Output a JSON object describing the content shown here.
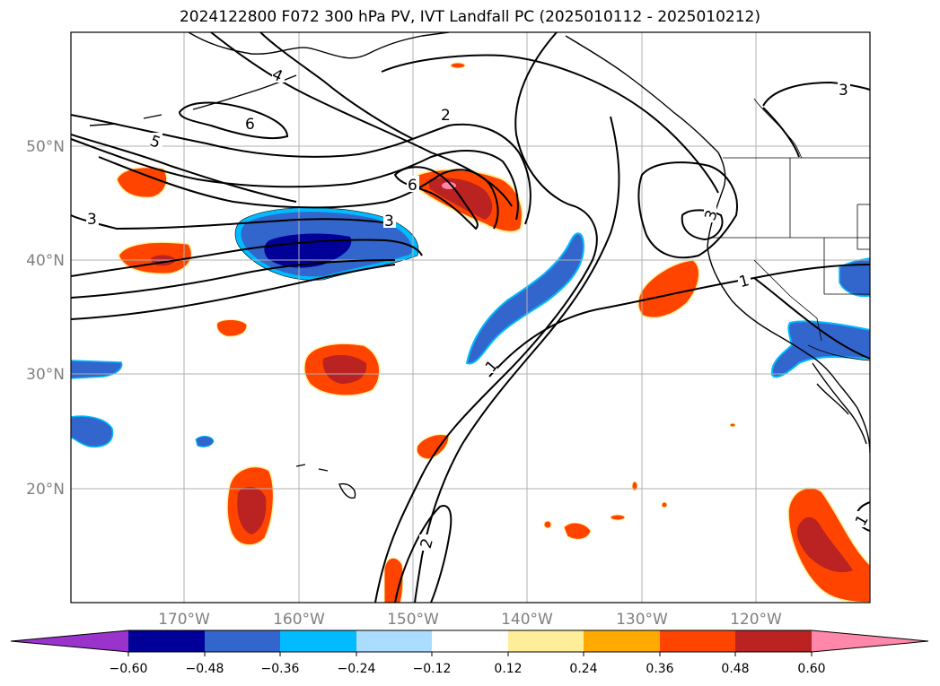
{
  "title": "2024122800 F072 300 hPa PV, IVT Landfall PC (2025010112 - 2025010212)",
  "map": {
    "lat_labels": [
      "50°N",
      "40°N",
      "30°N",
      "20°N"
    ],
    "lon_labels": [
      "170°W",
      "160°W",
      "150°W",
      "140°W",
      "130°W",
      "120°W"
    ],
    "contour_labels": [
      {
        "text": "4",
        "name": "contour-label-4"
      },
      {
        "text": "6",
        "name": "contour-label-6-north"
      },
      {
        "text": "5",
        "name": "contour-label-5"
      },
      {
        "text": "2",
        "name": "contour-label-2-north"
      },
      {
        "text": "6",
        "name": "contour-label-6-center"
      },
      {
        "text": "3",
        "name": "contour-label-3-center"
      },
      {
        "text": "3",
        "name": "contour-label-3-west"
      },
      {
        "text": "3",
        "name": "contour-label-3-northeast"
      },
      {
        "text": "3",
        "name": "contour-label-3-coast"
      },
      {
        "text": "1",
        "name": "contour-label-1-east"
      },
      {
        "text": "1",
        "name": "contour-label-1-center"
      },
      {
        "text": "2",
        "name": "contour-label-2-south"
      },
      {
        "text": "1",
        "name": "contour-label-1-southeast"
      }
    ]
  },
  "colorbar": {
    "ticks": [
      "−0.60",
      "−0.48",
      "−0.36",
      "−0.24",
      "−0.12",
      "0.12",
      "0.24",
      "0.36",
      "0.48",
      "0.60"
    ],
    "colors": {
      "under": "#9933cc",
      "bins": [
        "#000099",
        "#3366cc",
        "#00bbff",
        "#aaddff",
        "#ffffff",
        "#ffee99",
        "#ffaa00",
        "#ff4400",
        "#bb2222",
        "#ff88aa"
      ],
      "over": "#ff88aa"
    }
  },
  "colors": {
    "neg_dark": "#000099",
    "neg_mid": "#3366cc",
    "neg_light": "#00bbff",
    "pos_light": "#ffee99",
    "pos_orange": "#ffaa00",
    "pos_red": "#ff4400",
    "pos_dark": "#bb2222",
    "pos_pink": "#ff88aa"
  }
}
